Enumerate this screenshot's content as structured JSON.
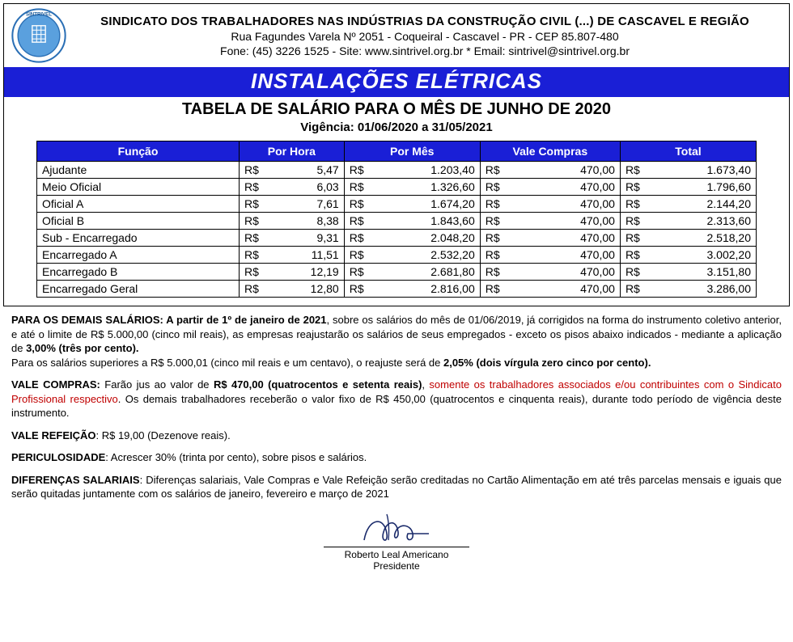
{
  "header": {
    "org_name": "SINDICATO DOS TRABALHADORES NAS INDÚSTRIAS DA CONSTRUÇÃO CIVIL (...) DE CASCAVEL E REGIÃO",
    "address": "Rua Fagundes Varela Nº 2051 - Coqueiral - Cascavel - PR - CEP 85.807-480",
    "contact": "Fone: (45) 3226 1525 - Site: www.sintrivel.org.br  *  Email: sintrivel@sintrivel.org.br",
    "logo_text_top": "SINTRIVEL",
    "logo_color_ring": "#2a6fb5",
    "logo_color_inner": "#5aa0de"
  },
  "banner": "INSTALAÇÕES ELÉTRICAS",
  "subtitle": "TABELA DE SALÁRIO PARA O MÊS DE JUNHO DE 2020",
  "vigencia": "Vigência: 01/06/2020 a 31/05/2021",
  "colors": {
    "banner_bg": "#1a1fd6",
    "banner_fg": "#ffffff",
    "th_bg": "#1a1fd6",
    "th_fg": "#ffffff",
    "border": "#000000",
    "text": "#000000",
    "red": "#c00000",
    "background": "#ffffff"
  },
  "table": {
    "columns": [
      "Função",
      "Por Hora",
      "Por Mês",
      "Vale Compras",
      "Total"
    ],
    "currency": "R$",
    "rows": [
      {
        "funcao": "Ajudante",
        "por_hora": "5,47",
        "por_mes": "1.203,40",
        "vale": "470,00",
        "total": "1.673,40"
      },
      {
        "funcao": "Meio Oficial",
        "por_hora": "6,03",
        "por_mes": "1.326,60",
        "vale": "470,00",
        "total": "1.796,60"
      },
      {
        "funcao": "Oficial A",
        "por_hora": "7,61",
        "por_mes": "1.674,20",
        "vale": "470,00",
        "total": "2.144,20"
      },
      {
        "funcao": "Oficial B",
        "por_hora": "8,38",
        "por_mes": "1.843,60",
        "vale": "470,00",
        "total": "2.313,60"
      },
      {
        "funcao": "Sub - Encarregado",
        "por_hora": "9,31",
        "por_mes": "2.048,20",
        "vale": "470,00",
        "total": "2.518,20"
      },
      {
        "funcao": "Encarregado A",
        "por_hora": "11,51",
        "por_mes": "2.532,20",
        "vale": "470,00",
        "total": "3.002,20"
      },
      {
        "funcao": "Encarregado B",
        "por_hora": "12,19",
        "por_mes": "2.681,80",
        "vale": "470,00",
        "total": "3.151,80"
      },
      {
        "funcao": "Encarregado Geral",
        "por_hora": "12,80",
        "por_mes": "2.816,00",
        "vale": "470,00",
        "total": "3.286,00"
      }
    ]
  },
  "notes": {
    "p1_a": "PARA OS DEMAIS SALÁRIOS: A partir de 1º de janeiro de 2021",
    "p1_b": ", sobre os salários do mês de 01/06/2019, já corrigidos na forma do instrumento coletivo anterior, e até o limite de R$ 5.000,00 (cinco mil reais), as empresas reajustarão os salários de seus empregados - exceto os pisos abaixo indicados - mediante a aplicação de ",
    "p1_c": "3,00% (três por cento).",
    "p1_d": "Para os salários superiores a R$ 5.000,01 (cinco mil reais e um centavo), o reajuste será de ",
    "p1_e": "2,05% (dois vírgula zero cinco por cento).",
    "p2_a": "VALE COMPRAS:",
    "p2_b": " Farão jus ao valor de ",
    "p2_c": "R$ 470,00 (quatrocentos e setenta reais)",
    "p2_d": ", ",
    "p2_e": "somente os trabalhadores associados e/ou contribuintes com o Sindicato Profissional respectivo",
    "p2_f": ". Os demais trabalhadores receberão o valor fixo de R$ 450,00 (quatrocentos e cinquenta reais), durante todo período de vigência deste instrumento.",
    "p3_a": "VALE REFEIÇÃO",
    "p3_b": ": R$ 19,00 (Dezenove reais).",
    "p4_a": "PERICULOSIDADE",
    "p4_b": ": Acrescer 30% (trinta por cento), sobre pisos e salários.",
    "p5_a": "DIFERENÇAS SALARIAIS",
    "p5_b": ": Diferenças salariais, Vale Compras e Vale Refeição serão creditadas no Cartão Alimentação em até três parcelas mensais e iguais que serão quitadas juntamente com os salários de janeiro, fevereiro e março de 2021"
  },
  "signature": {
    "name": "Roberto Leal Americano",
    "title": "Presidente"
  }
}
